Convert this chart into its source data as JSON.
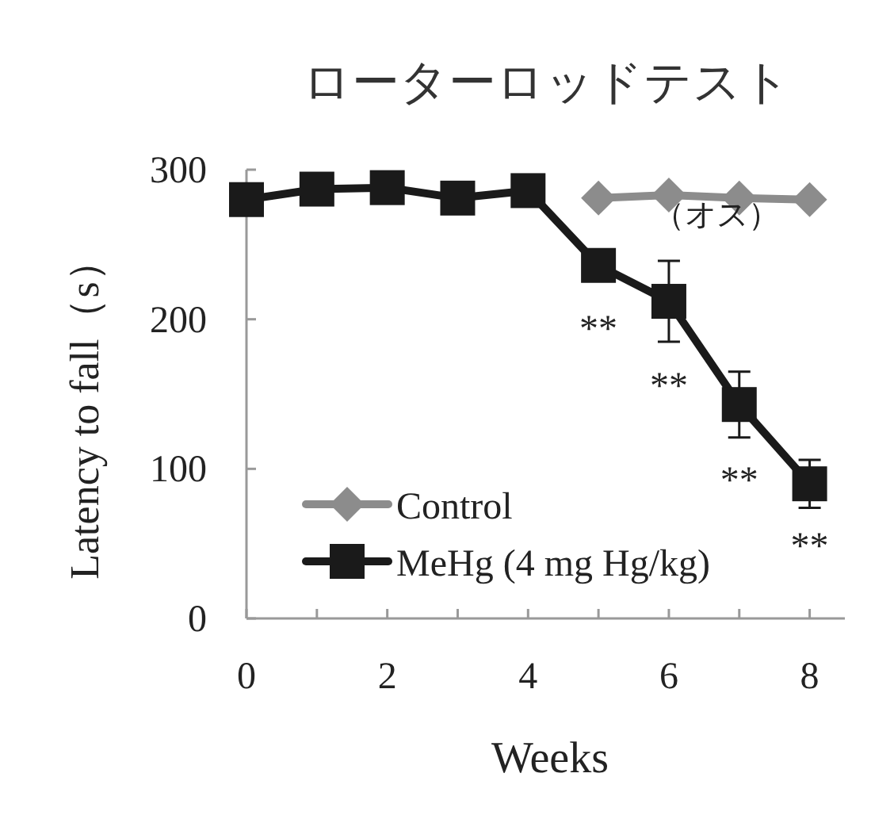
{
  "chart_data": {
    "type": "line",
    "title": "ローターロッドテスト",
    "xlabel": "Weeks",
    "ylabel": "Latency to fall（s）",
    "x": [
      0,
      1,
      2,
      3,
      4,
      5,
      6,
      7,
      8
    ],
    "series": [
      {
        "name": "Control",
        "color": "#8c8c8c",
        "marker": "diamond",
        "values": [
          null,
          null,
          null,
          null,
          null,
          281,
          283,
          281,
          280
        ]
      },
      {
        "name": "MeHg (4 mg Hg/kg)",
        "color": "#1a1a1a",
        "marker": "square",
        "values": [
          280,
          287,
          288,
          281,
          286,
          236,
          212,
          143,
          90
        ],
        "errors": [
          null,
          null,
          null,
          null,
          null,
          null,
          27,
          22,
          16
        ]
      }
    ],
    "xlim": [
      0,
      8.5
    ],
    "xticks": [
      0,
      {
        "value": 1,
        "label": null
      },
      2,
      {
        "value": 3,
        "label": null
      },
      4,
      {
        "value": 5,
        "label": null
      },
      6,
      {
        "value": 7,
        "label": null
      },
      8
    ],
    "ylim": [
      0,
      300
    ],
    "yticks": [
      0,
      100,
      200,
      300
    ],
    "legend": "bottom left",
    "grid": false,
    "line_style": "solid",
    "annotations": [
      "**",
      "**",
      "**",
      "**",
      "（オス）"
    ]
  }
}
